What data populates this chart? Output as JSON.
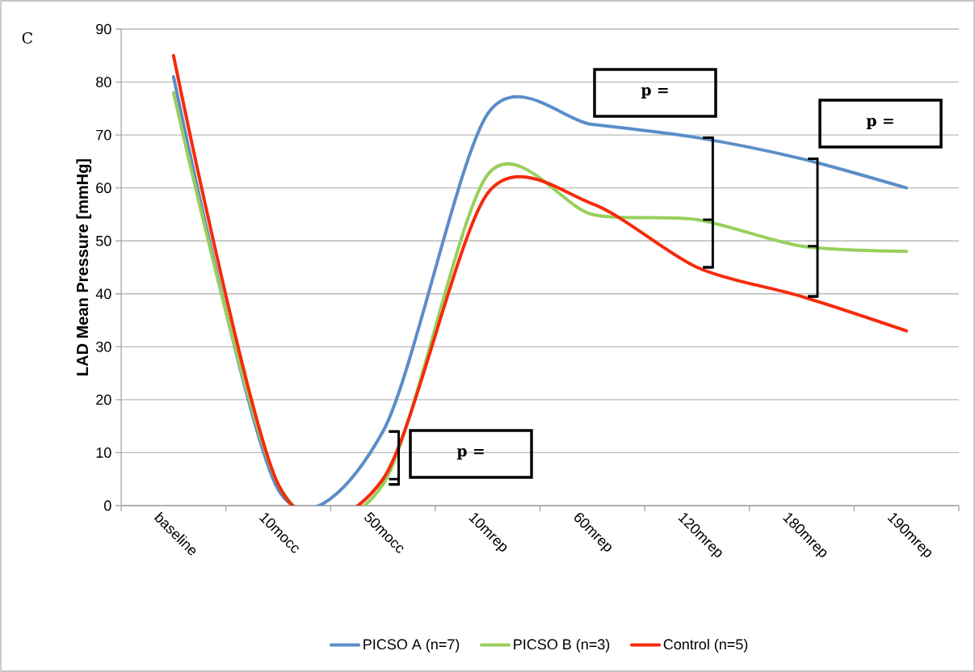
{
  "chart_data": {
    "type": "line",
    "ylabel": "LAD Mean Pressure [mmHg]",
    "categories": [
      "baseline",
      "10mocc",
      "50mocc",
      "10mrep",
      "60mrep",
      "120mrep",
      "180mrep",
      "190mrep"
    ],
    "series": [
      {
        "name": "PICSO A (n=7)",
        "color": "#5b8ec8",
        "values": [
          81,
          3,
          14,
          74,
          72,
          69.5,
          65.5,
          60
        ]
      },
      {
        "name": "PICSO B (n=3)",
        "color": "#98cf5c",
        "values": [
          78,
          4,
          4,
          62.5,
          55,
          54,
          49,
          48
        ]
      },
      {
        "name": "Control (n=5)",
        "color": "#f52a0c",
        "values": [
          85,
          4,
          5,
          59,
          57,
          45,
          39.5,
          33
        ]
      }
    ],
    "ylim": [
      0,
      90
    ],
    "yticks": [
      0,
      10,
      20,
      30,
      40,
      50,
      60,
      70,
      80,
      90
    ],
    "grid": "y",
    "legend": "bottom",
    "line_style": "solid",
    "annotations": [
      "C",
      "p =",
      "p =",
      "p ="
    ]
  }
}
